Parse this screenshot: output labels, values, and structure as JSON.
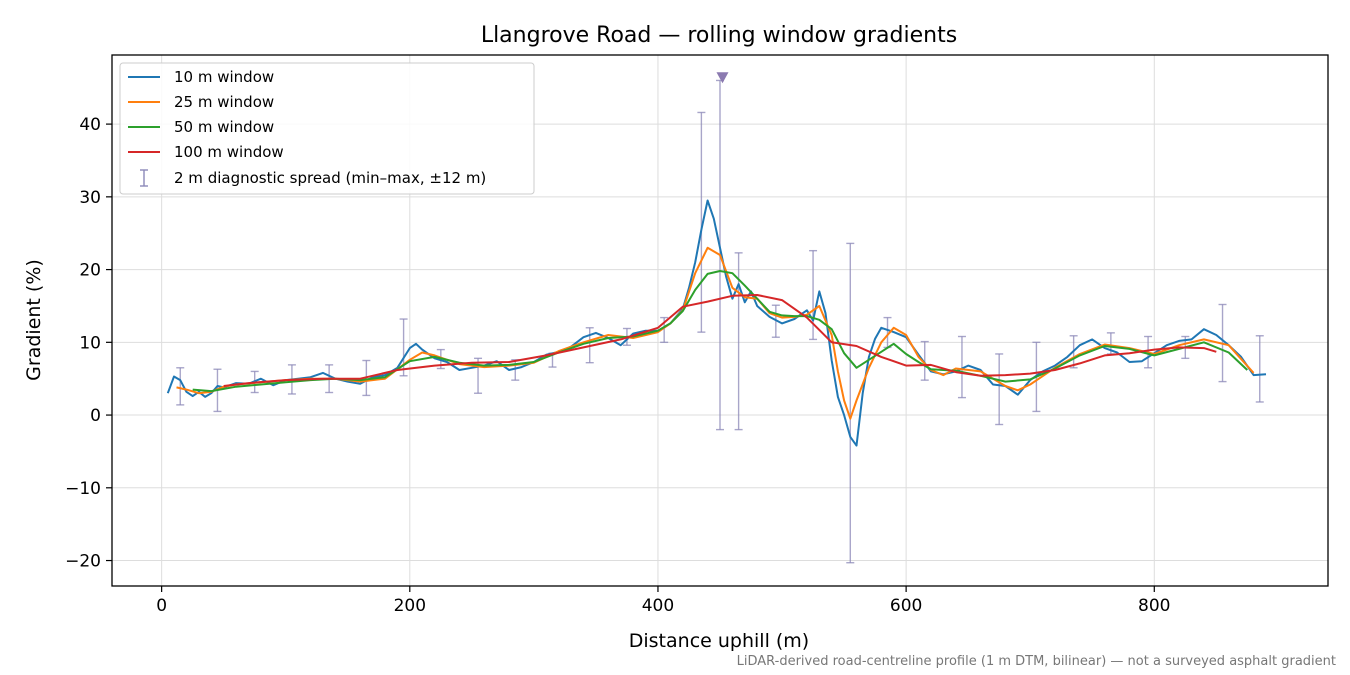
{
  "chart_data": {
    "type": "line",
    "title": "Llangrove Road — rolling window gradients",
    "xlabel": "Distance uphill (m)",
    "ylabel": "Gradient (%)",
    "xlim": [
      -40,
      940
    ],
    "ylim": [
      -23.5,
      49.5
    ],
    "xticks": [
      0,
      200,
      400,
      600,
      800
    ],
    "xtick_labels": [
      "0",
      "200",
      "400",
      "600",
      "800"
    ],
    "yticks": [
      -20,
      -10,
      0,
      10,
      20,
      30,
      40
    ],
    "ytick_labels": [
      "−20",
      "−10",
      "0",
      "10",
      "20",
      "30",
      "40"
    ],
    "grid": true,
    "legend_position": "upper-left",
    "footnote": "LiDAR-derived road-centreline profile (1 m DTM, bilinear) — not a surveyed asphalt gradient",
    "series": [
      {
        "name": "10 m window",
        "color": "#1f77b4",
        "x": [
          5,
          10,
          15,
          20,
          25,
          30,
          35,
          40,
          45,
          50,
          60,
          70,
          80,
          90,
          100,
          110,
          120,
          130,
          140,
          150,
          160,
          170,
          180,
          190,
          200,
          205,
          210,
          220,
          230,
          240,
          250,
          260,
          270,
          280,
          290,
          300,
          310,
          320,
          330,
          340,
          350,
          360,
          370,
          380,
          390,
          400,
          410,
          420,
          425,
          430,
          435,
          440,
          445,
          450,
          455,
          460,
          465,
          470,
          475,
          480,
          490,
          500,
          510,
          520,
          525,
          530,
          535,
          540,
          545,
          550,
          555,
          560,
          565,
          570,
          575,
          580,
          590,
          600,
          610,
          620,
          630,
          640,
          650,
          660,
          670,
          680,
          690,
          700,
          710,
          720,
          730,
          740,
          750,
          760,
          770,
          780,
          790,
          800,
          810,
          820,
          830,
          840,
          850,
          860,
          870,
          880,
          890
        ],
        "y": [
          3,
          5.3,
          4.8,
          3.2,
          2.6,
          3.2,
          2.5,
          3,
          4,
          3.8,
          4.4,
          4.3,
          5,
          4.1,
          4.8,
          5,
          5.2,
          5.8,
          5,
          4.6,
          4.3,
          5.2,
          5.5,
          6.5,
          9.2,
          9.8,
          9,
          7.8,
          7.3,
          6.2,
          6.5,
          6.8,
          7.4,
          6.2,
          6.6,
          7.3,
          8.3,
          8.7,
          9.4,
          10.7,
          11.3,
          10.6,
          9.6,
          11.2,
          11.6,
          11.6,
          12.6,
          14.6,
          17.5,
          21,
          25.5,
          29.5,
          27,
          23,
          19,
          16,
          18,
          15.5,
          17,
          15,
          13.5,
          12.6,
          13.2,
          14.4,
          13,
          17,
          14,
          7.5,
          2.5,
          0,
          -3,
          -4.2,
          3,
          8,
          10.5,
          12,
          11.4,
          10.7,
          8.3,
          6,
          5.6,
          6,
          6.8,
          6.2,
          4.2,
          4,
          2.8,
          4.8,
          6,
          6.8,
          8,
          9.6,
          10.4,
          9.2,
          8.6,
          7.3,
          7.4,
          8.5,
          9.6,
          10.2,
          10.4,
          11.8,
          11,
          9.6,
          8,
          5.5,
          5.6
        ]
      },
      {
        "name": "25 m window",
        "color": "#ff7f0e",
        "x": [
          12,
          20,
          30,
          40,
          50,
          60,
          80,
          100,
          120,
          140,
          160,
          180,
          200,
          210,
          220,
          240,
          260,
          280,
          300,
          320,
          340,
          360,
          380,
          400,
          410,
          420,
          430,
          440,
          450,
          460,
          470,
          480,
          490,
          500,
          510,
          520,
          530,
          540,
          545,
          550,
          555,
          560,
          570,
          580,
          590,
          600,
          610,
          620,
          630,
          640,
          660,
          680,
          690,
          700,
          720,
          740,
          760,
          780,
          800,
          820,
          840,
          860,
          880
        ],
        "y": [
          3.8,
          3.5,
          3,
          3.2,
          3.9,
          4.2,
          4.5,
          4.8,
          5,
          5,
          4.6,
          5,
          7.6,
          8.6,
          8.2,
          7,
          6.6,
          6.8,
          7.2,
          8.8,
          10,
          11,
          10.6,
          11.4,
          12.6,
          14.4,
          19.5,
          23,
          22,
          17.5,
          16.2,
          16,
          14,
          13.4,
          13.5,
          13.8,
          15,
          11,
          6,
          2,
          -0.5,
          2,
          6.5,
          10,
          12,
          11,
          8,
          6.2,
          5.5,
          6.4,
          6,
          4,
          3.4,
          4.2,
          6.5,
          8.4,
          9.7,
          9.2,
          8.4,
          9.6,
          10.4,
          9.6,
          5.8
        ]
      },
      {
        "name": "50 m window",
        "color": "#2ca02c",
        "x": [
          25,
          40,
          60,
          80,
          100,
          120,
          140,
          160,
          180,
          200,
          220,
          240,
          260,
          280,
          300,
          320,
          340,
          360,
          380,
          400,
          410,
          420,
          430,
          440,
          450,
          460,
          470,
          480,
          490,
          500,
          510,
          520,
          530,
          540,
          550,
          560,
          570,
          580,
          590,
          600,
          610,
          620,
          640,
          660,
          680,
          700,
          720,
          740,
          760,
          780,
          800,
          820,
          840,
          860,
          875
        ],
        "y": [
          3.5,
          3.3,
          3.9,
          4.2,
          4.5,
          4.8,
          5,
          4.8,
          5.2,
          7.4,
          8,
          7.2,
          6.8,
          6.9,
          7.3,
          8.6,
          9.8,
          10.6,
          10.8,
          11.6,
          12.6,
          14.3,
          17.2,
          19.4,
          19.8,
          19.5,
          17.8,
          16,
          14.2,
          13.7,
          13.6,
          13.6,
          13.1,
          11.8,
          8.5,
          6.5,
          7.6,
          8.7,
          9.8,
          8.4,
          7.3,
          6.3,
          6.1,
          5.4,
          4.6,
          4.9,
          6.4,
          8.2,
          9.5,
          9.1,
          8.2,
          9.1,
          10,
          8.6,
          6.2
        ]
      },
      {
        "name": "100 m window",
        "color": "#d62728",
        "x": [
          50,
          70,
          100,
          130,
          160,
          190,
          220,
          250,
          280,
          310,
          340,
          370,
          400,
          420,
          440,
          460,
          480,
          500,
          520,
          540,
          560,
          580,
          600,
          620,
          640,
          660,
          680,
          700,
          720,
          740,
          760,
          780,
          800,
          820,
          840,
          850
        ],
        "y": [
          4,
          4.4,
          4.8,
          5,
          5,
          6.2,
          6.8,
          7.2,
          7.3,
          8.2,
          9.3,
          10.4,
          12,
          14.9,
          15.6,
          16.4,
          16.5,
          15.8,
          13.4,
          10,
          9.5,
          8,
          6.8,
          6.9,
          5.9,
          5.4,
          5.5,
          5.7,
          6.2,
          7.1,
          8.2,
          8.5,
          9,
          9.3,
          9.2,
          8.7
        ]
      }
    ],
    "diagnostic": {
      "name": "2 m diagnostic spread (min–max, ±12 m)",
      "color": "#8b88b8",
      "x": [
        15,
        45,
        75,
        105,
        135,
        165,
        195,
        225,
        255,
        285,
        315,
        345,
        375,
        405,
        435,
        450,
        465,
        495,
        525,
        555,
        585,
        615,
        645,
        675,
        705,
        735,
        765,
        795,
        825,
        855,
        885
      ],
      "low": [
        1.4,
        0.5,
        3.1,
        2.9,
        3.1,
        2.7,
        5.4,
        6.4,
        3,
        4.8,
        6.6,
        7.2,
        9.6,
        10,
        11.4,
        -2,
        -2,
        10.7,
        10.4,
        -20.3,
        9.3,
        4.8,
        2.4,
        -1.3,
        0.5,
        6.5,
        8.4,
        6.5,
        7.8,
        4.6,
        1.8
      ],
      "high": [
        6.5,
        6.3,
        6,
        6.9,
        6.9,
        7.5,
        13.2,
        9,
        7.8,
        7.6,
        8.5,
        12,
        11.9,
        13.4,
        41.6,
        46,
        22.3,
        15.1,
        22.6,
        23.6,
        13.4,
        10.1,
        10.8,
        8.4,
        10,
        10.9,
        11.3,
        10.8,
        10.8,
        15.2,
        10.9
      ]
    },
    "marker": {
      "x": 452,
      "y": 46.3,
      "symbol": "down-triangle",
      "color": "#8b7ab0"
    }
  }
}
